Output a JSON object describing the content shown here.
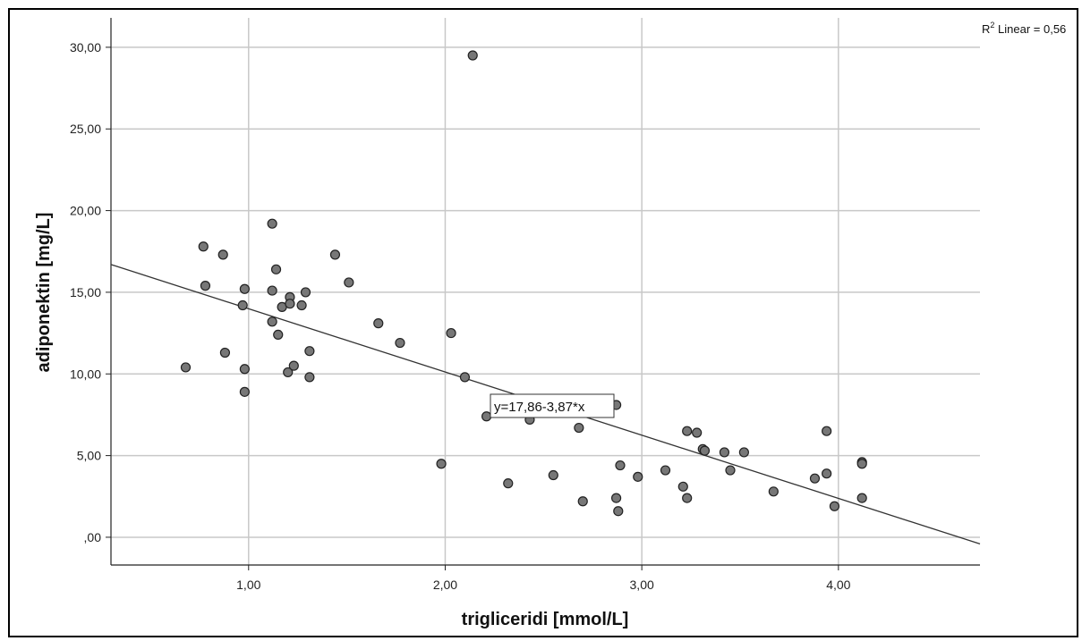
{
  "chart_data": {
    "type": "scatter",
    "xlabel": "trigliceridi [mmol/L]",
    "ylabel": "adiponektin [mg/L]",
    "xlim": [
      0.3,
      4.72
    ],
    "ylim": [
      -1.7,
      31.8
    ],
    "x_ticks": [
      1,
      2,
      3,
      4
    ],
    "x_tick_labels": [
      "1,00",
      "2,00",
      "3,00",
      "4,00"
    ],
    "y_ticks": [
      0,
      5,
      10,
      15,
      20,
      25,
      30
    ],
    "y_tick_labels": [
      ",00",
      "5,00",
      "10,00",
      "15,00",
      "20,00",
      "25,00",
      "30,00"
    ],
    "grid": true,
    "r_squared_label": "R",
    "r_squared_sup": "2",
    "r_squared_text": " Linear = 0,56",
    "fit_line": {
      "intercept": 17.86,
      "slope": -3.87,
      "label": "y=17,86-3,87*x"
    },
    "points": [
      {
        "x": 0.68,
        "y": 10.4
      },
      {
        "x": 0.77,
        "y": 17.8
      },
      {
        "x": 0.78,
        "y": 15.4
      },
      {
        "x": 0.87,
        "y": 17.3
      },
      {
        "x": 0.88,
        "y": 11.3
      },
      {
        "x": 0.97,
        "y": 14.2
      },
      {
        "x": 0.98,
        "y": 15.2
      },
      {
        "x": 0.98,
        "y": 10.3
      },
      {
        "x": 0.98,
        "y": 8.9
      },
      {
        "x": 1.12,
        "y": 19.2
      },
      {
        "x": 1.12,
        "y": 15.1
      },
      {
        "x": 1.12,
        "y": 13.2
      },
      {
        "x": 1.14,
        "y": 16.4
      },
      {
        "x": 1.15,
        "y": 12.4
      },
      {
        "x": 1.17,
        "y": 14.1
      },
      {
        "x": 1.2,
        "y": 10.1
      },
      {
        "x": 1.21,
        "y": 14.7
      },
      {
        "x": 1.21,
        "y": 14.3
      },
      {
        "x": 1.23,
        "y": 10.5
      },
      {
        "x": 1.27,
        "y": 14.2
      },
      {
        "x": 1.29,
        "y": 15.0
      },
      {
        "x": 1.31,
        "y": 11.4
      },
      {
        "x": 1.31,
        "y": 9.8
      },
      {
        "x": 1.44,
        "y": 17.3
      },
      {
        "x": 1.51,
        "y": 15.6
      },
      {
        "x": 1.66,
        "y": 13.1
      },
      {
        "x": 1.77,
        "y": 11.9
      },
      {
        "x": 1.98,
        "y": 4.5
      },
      {
        "x": 2.03,
        "y": 12.5
      },
      {
        "x": 2.1,
        "y": 9.8
      },
      {
        "x": 2.14,
        "y": 29.5
      },
      {
        "x": 2.21,
        "y": 7.4
      },
      {
        "x": 2.32,
        "y": 3.3
      },
      {
        "x": 2.43,
        "y": 7.2
      },
      {
        "x": 2.55,
        "y": 3.8
      },
      {
        "x": 2.68,
        "y": 6.7
      },
      {
        "x": 2.7,
        "y": 2.2
      },
      {
        "x": 2.87,
        "y": 8.1
      },
      {
        "x": 2.87,
        "y": 2.4
      },
      {
        "x": 2.88,
        "y": 1.6
      },
      {
        "x": 2.89,
        "y": 4.4
      },
      {
        "x": 2.98,
        "y": 3.7
      },
      {
        "x": 3.12,
        "y": 4.1
      },
      {
        "x": 3.21,
        "y": 3.1
      },
      {
        "x": 3.23,
        "y": 6.5
      },
      {
        "x": 3.23,
        "y": 2.4
      },
      {
        "x": 3.28,
        "y": 6.4
      },
      {
        "x": 3.31,
        "y": 5.4
      },
      {
        "x": 3.32,
        "y": 5.3
      },
      {
        "x": 3.42,
        "y": 5.2
      },
      {
        "x": 3.45,
        "y": 4.1
      },
      {
        "x": 3.52,
        "y": 5.2
      },
      {
        "x": 3.67,
        "y": 2.8
      },
      {
        "x": 3.88,
        "y": 3.6
      },
      {
        "x": 3.94,
        "y": 6.5
      },
      {
        "x": 3.94,
        "y": 3.9
      },
      {
        "x": 3.98,
        "y": 1.9
      },
      {
        "x": 4.12,
        "y": 4.6
      },
      {
        "x": 4.12,
        "y": 4.5
      },
      {
        "x": 4.12,
        "y": 2.4
      }
    ],
    "colors": {
      "point_fill": "#777777",
      "point_stroke": "#222222",
      "grid": "#c8c8c8",
      "line": "#333333"
    }
  }
}
